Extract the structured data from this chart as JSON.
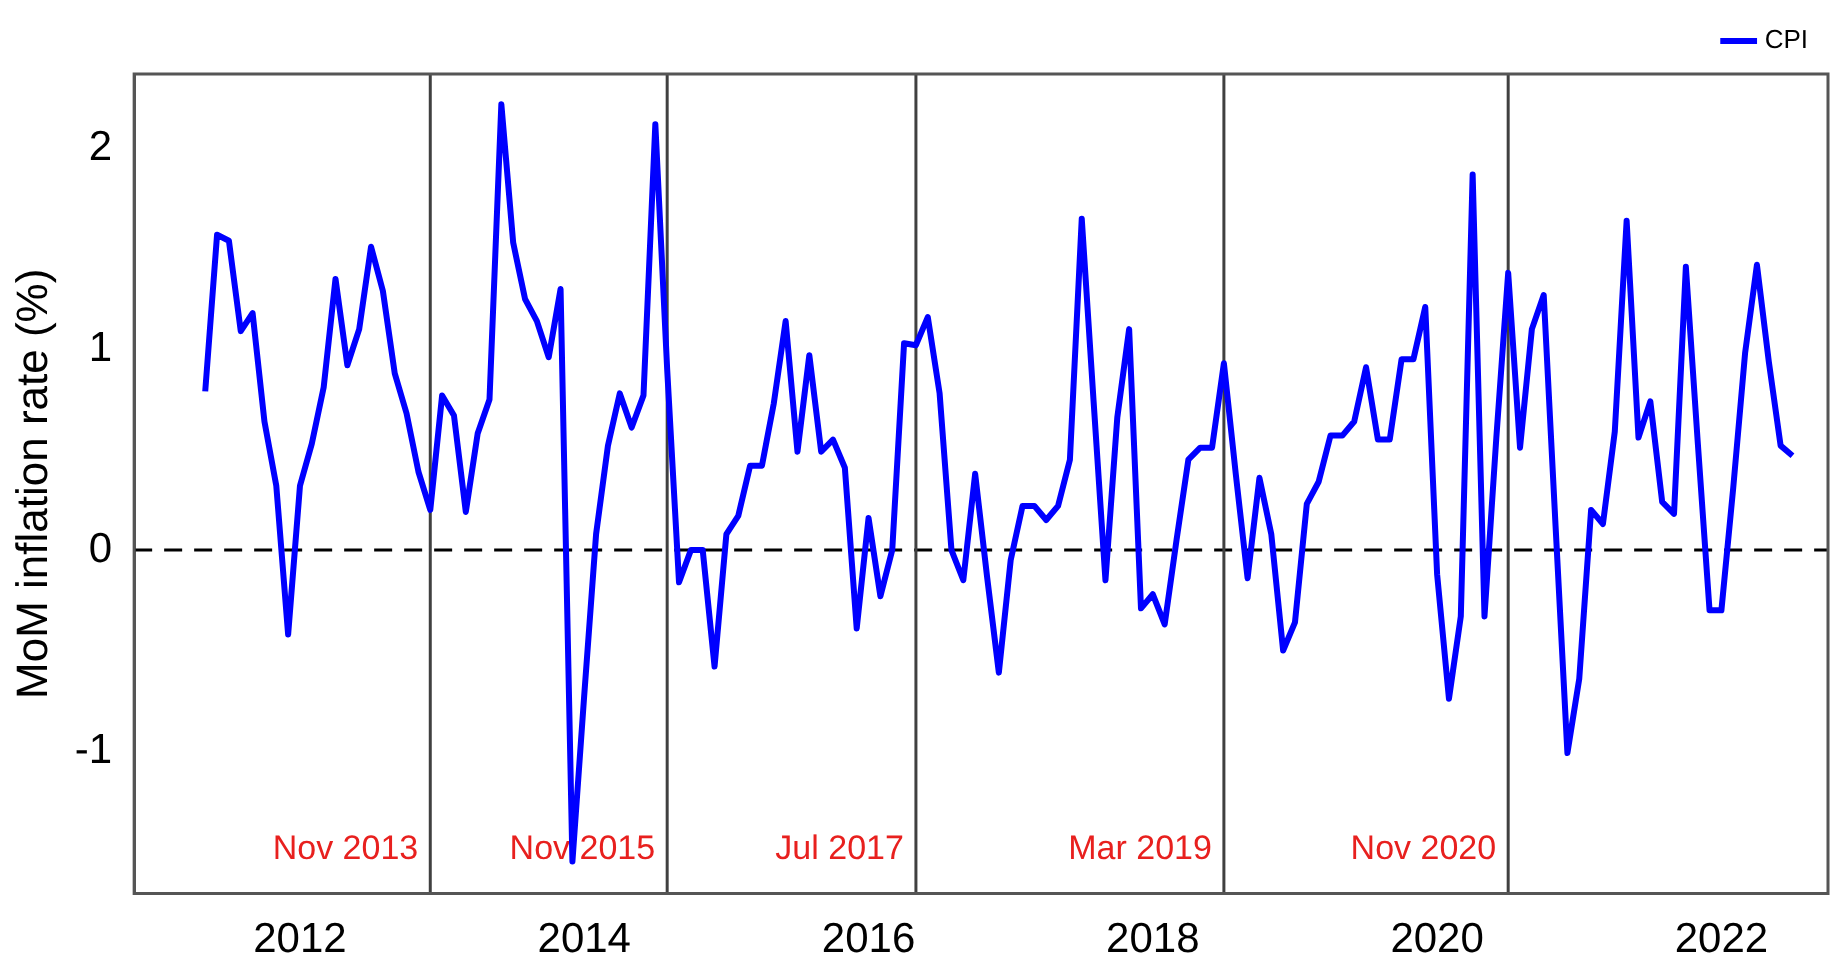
{
  "chart_data": {
    "type": "line",
    "ylabel": "MoM inflation rate (%)",
    "x": [
      "2011-05",
      "2011-06",
      "2011-07",
      "2011-08",
      "2011-09",
      "2011-10",
      "2011-11",
      "2011-12",
      "2012-01",
      "2012-02",
      "2012-03",
      "2012-04",
      "2012-05",
      "2012-06",
      "2012-07",
      "2012-08",
      "2012-09",
      "2012-10",
      "2012-11",
      "2012-12",
      "2013-01",
      "2013-02",
      "2013-03",
      "2013-04",
      "2013-05",
      "2013-06",
      "2013-07",
      "2013-08",
      "2013-09",
      "2013-10",
      "2013-11",
      "2013-12",
      "2014-01",
      "2014-02",
      "2014-03",
      "2014-04",
      "2014-05",
      "2014-06",
      "2014-07",
      "2014-08",
      "2014-09",
      "2014-10",
      "2014-11",
      "2014-12",
      "2015-01",
      "2015-02",
      "2015-03",
      "2015-04",
      "2015-05",
      "2015-06",
      "2015-07",
      "2015-08",
      "2015-09",
      "2015-10",
      "2015-11",
      "2015-12",
      "2016-01",
      "2016-02",
      "2016-03",
      "2016-04",
      "2016-05",
      "2016-06",
      "2016-07",
      "2016-08",
      "2016-09",
      "2016-10",
      "2016-11",
      "2016-12",
      "2017-01",
      "2017-02",
      "2017-03",
      "2017-04",
      "2017-05",
      "2017-06",
      "2017-07",
      "2017-08",
      "2017-09",
      "2017-10",
      "2017-11",
      "2017-12",
      "2018-01",
      "2018-02",
      "2018-03",
      "2018-04",
      "2018-05",
      "2018-06",
      "2018-07",
      "2018-08",
      "2018-09",
      "2018-10",
      "2018-11",
      "2018-12",
      "2019-01",
      "2019-02",
      "2019-03",
      "2019-04",
      "2019-05",
      "2019-06",
      "2019-07",
      "2019-08",
      "2019-09",
      "2019-10",
      "2019-11",
      "2019-12",
      "2020-01",
      "2020-02",
      "2020-03",
      "2020-04",
      "2020-05",
      "2020-06",
      "2020-07",
      "2020-08",
      "2020-09",
      "2020-10",
      "2020-11",
      "2020-12",
      "2021-01",
      "2021-02",
      "2021-03",
      "2021-04",
      "2021-05",
      "2021-06",
      "2021-07",
      "2021-08",
      "2021-09",
      "2021-10",
      "2021-11",
      "2021-12",
      "2022-01",
      "2022-02",
      "2022-03",
      "2022-04",
      "2022-05",
      "2022-06",
      "2022-07"
    ],
    "series": [
      {
        "name": "CPI",
        "color": "#0000ff",
        "values": [
          0.79,
          1.57,
          1.54,
          1.09,
          1.18,
          0.64,
          0.32,
          -0.42,
          0.32,
          0.53,
          0.81,
          1.35,
          0.92,
          1.1,
          1.51,
          1.29,
          0.88,
          0.68,
          0.39,
          0.2,
          0.77,
          0.67,
          0.19,
          0.58,
          0.75,
          2.22,
          1.53,
          1.25,
          1.14,
          0.96,
          1.3,
          -1.55,
          -0.72,
          0.08,
          0.52,
          0.78,
          0.61,
          0.77,
          2.12,
          0.9,
          -0.16,
          0,
          0,
          -0.58,
          0.08,
          0.17,
          0.42,
          0.42,
          0.73,
          1.14,
          0.49,
          0.97,
          0.49,
          0.55,
          0.41,
          -0.39,
          0.16,
          -0.23,
          0,
          1.03,
          1.02,
          1.16,
          0.78,
          0,
          -0.15,
          0.38,
          -0.13,
          -0.61,
          -0.05,
          0.22,
          0.22,
          0.15,
          0.22,
          0.45,
          1.65,
          0.74,
          -0.15,
          0.66,
          1.1,
          -0.29,
          -0.22,
          -0.37,
          0.05,
          0.45,
          0.51,
          0.51,
          0.93,
          0.38,
          -0.14,
          0.36,
          0.08,
          -0.5,
          -0.36,
          0.23,
          0.34,
          0.57,
          0.57,
          0.64,
          0.91,
          0.55,
          0.55,
          0.95,
          0.95,
          1.21,
          -0.12,
          -0.74,
          -0.33,
          1.87,
          -0.33,
          0.56,
          1.38,
          0.51,
          1.1,
          1.27,
          0.12,
          -1.01,
          -0.64,
          0.2,
          0.13,
          0.59,
          1.64,
          0.56,
          0.74,
          0.24,
          0.18,
          1.41,
          0.54,
          -0.3,
          -0.3,
          0.31,
          0.98,
          1.42,
          0.94,
          0.52,
          0.47
        ]
      }
    ],
    "xlim": [
      "2010-11",
      "2022-10"
    ],
    "xticks": [
      "2012",
      "2014",
      "2016",
      "2018",
      "2020",
      "2022"
    ],
    "ylim": [
      -1.71,
      2.37
    ],
    "yticks": [
      -1,
      0,
      1,
      2
    ],
    "grid": false,
    "legend": "top right",
    "marker": "none",
    "line_style": "solid",
    "ref_lines": [
      {
        "axis": "y",
        "value": 0,
        "line_style": "dashed",
        "color": "#000000"
      },
      {
        "axis": "x",
        "value": "2012-12",
        "color": "#404040",
        "label": "Nov 2013"
      },
      {
        "axis": "x",
        "value": "2014-08",
        "color": "#404040",
        "label": "Nov 2015"
      },
      {
        "axis": "x",
        "value": "2016-05",
        "color": "#404040",
        "label": "Jul 2017"
      },
      {
        "axis": "x",
        "value": "2018-07",
        "color": "#404040",
        "label": "Mar 2019"
      },
      {
        "axis": "x",
        "value": "2020-07",
        "color": "#404040",
        "label": "Nov 2020"
      }
    ]
  }
}
